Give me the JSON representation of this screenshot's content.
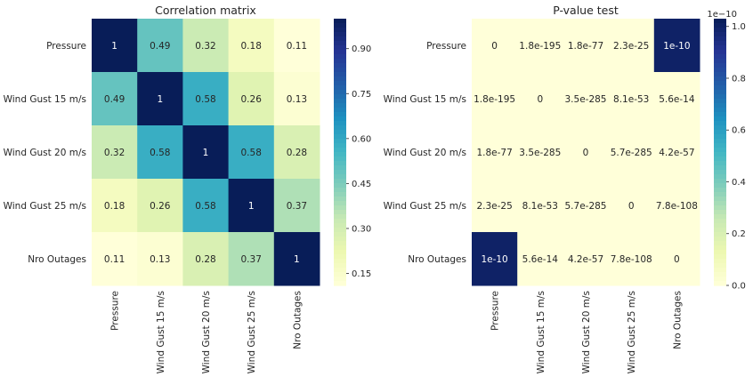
{
  "chart_data": [
    {
      "type": "heatmap",
      "title": "Correlation matrix",
      "categories": [
        "Pressure",
        "Wind Gust 15 m/s",
        "Wind Gust 20 m/s",
        "Wind Gust 25 m/s",
        "Nro Outages"
      ],
      "values": [
        [
          1,
          0.49,
          0.32,
          0.18,
          0.11
        ],
        [
          0.49,
          1,
          0.58,
          0.26,
          0.13
        ],
        [
          0.32,
          0.58,
          1,
          0.58,
          0.28
        ],
        [
          0.18,
          0.26,
          0.58,
          1,
          0.37
        ],
        [
          0.11,
          0.13,
          0.28,
          0.37,
          1
        ]
      ],
      "labels": [
        [
          "1",
          "0.49",
          "0.32",
          "0.18",
          "0.11"
        ],
        [
          "0.49",
          "1",
          "0.58",
          "0.26",
          "0.13"
        ],
        [
          "0.32",
          "0.58",
          "1",
          "0.58",
          "0.28"
        ],
        [
          "0.18",
          "0.26",
          "0.58",
          "1",
          "0.37"
        ],
        [
          "0.11",
          "0.13",
          "0.28",
          "0.37",
          "1"
        ]
      ],
      "colorscale": "YlGnBu",
      "vmin": 0.11,
      "vmax": 1,
      "colorbar_ticks": [
        "0.15",
        "0.30",
        "0.45",
        "0.60",
        "0.75",
        "0.90"
      ],
      "colorbar_offset": ""
    },
    {
      "type": "heatmap",
      "title": "P-value test",
      "categories": [
        "Pressure",
        "Wind Gust 15 m/s",
        "Wind Gust 20 m/s",
        "Wind Gust 25 m/s",
        "Nro Outages"
      ],
      "values": [
        [
          0,
          1.8e-195,
          1.8e-77,
          2.3e-25,
          1e-10
        ],
        [
          1.8e-195,
          0,
          3.5e-285,
          8.1e-53,
          5.6e-14
        ],
        [
          1.8e-77,
          3.5e-285,
          0,
          5.7e-285,
          4.2e-57
        ],
        [
          2.3e-25,
          8.1e-53,
          5.7e-285,
          0,
          7.8e-108
        ],
        [
          1e-10,
          5.6e-14,
          4.2e-57,
          7.8e-108,
          0
        ]
      ],
      "labels": [
        [
          "0",
          "1.8e-195",
          "1.8e-77",
          "2.3e-25",
          "1e-10"
        ],
        [
          "1.8e-195",
          "0",
          "3.5e-285",
          "8.1e-53",
          "5.6e-14"
        ],
        [
          "1.8e-77",
          "3.5e-285",
          "0",
          "5.7e-285",
          "4.2e-57"
        ],
        [
          "2.3e-25",
          "8.1e-53",
          "5.7e-285",
          "0",
          "7.8e-108"
        ],
        [
          "1e-10",
          "5.6e-14",
          "4.2e-57",
          "7.8e-108",
          "0"
        ]
      ],
      "colorscale": "YlGnBu",
      "vmin": 0,
      "vmax": 1.03e-10,
      "colorbar_ticks": [
        "0.0",
        "0.2",
        "0.4",
        "0.6",
        "0.8",
        "1.0"
      ],
      "colorbar_offset": "1e−10"
    }
  ]
}
